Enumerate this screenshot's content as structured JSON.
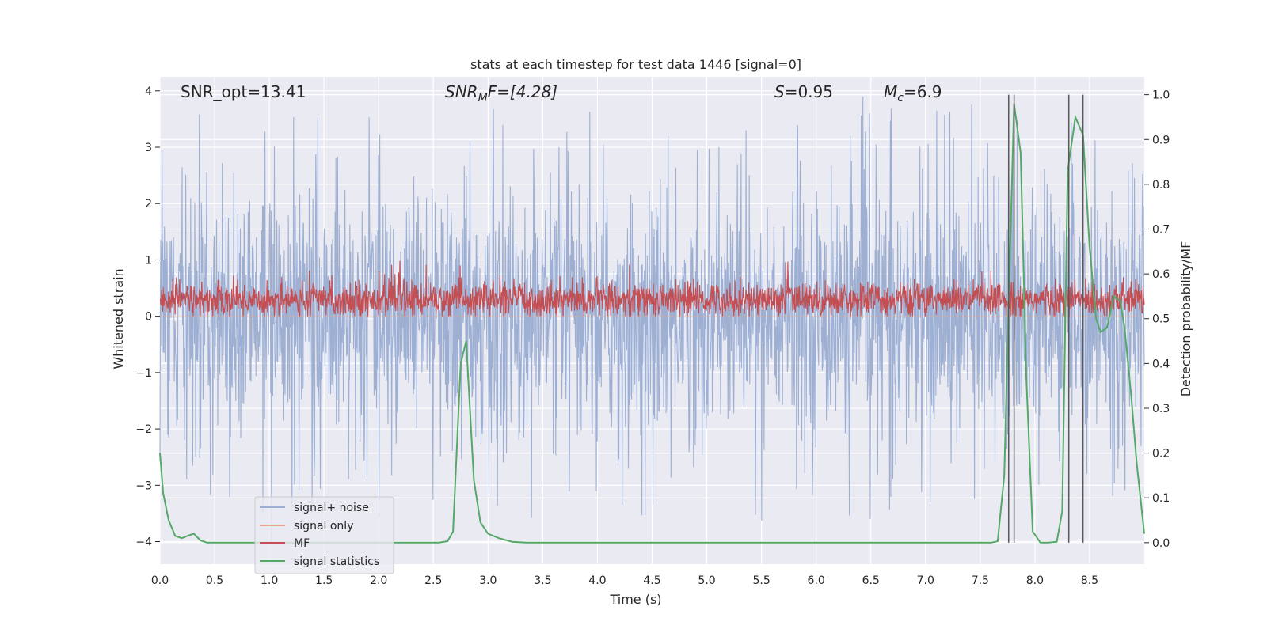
{
  "chart_data": {
    "type": "line",
    "title": "stats at each timestep for test data 1446 [signal=0]",
    "xlabel": "Time (s)",
    "ylabel": "Whitened strain",
    "y2label": "Detection probability/MF",
    "xlim": [
      0.0,
      9.0
    ],
    "ylim": [
      -4.4,
      4.25
    ],
    "y2lim": [
      -0.048,
      1.04
    ],
    "xticks": [
      0.0,
      0.5,
      1.0,
      1.5,
      2.0,
      2.5,
      3.0,
      3.5,
      4.0,
      4.5,
      5.0,
      5.5,
      6.0,
      6.5,
      7.0,
      7.5,
      8.0,
      8.5
    ],
    "xtick_labels": [
      "0.0",
      "0.5",
      "1.0",
      "1.5",
      "2.0",
      "2.5",
      "3.0",
      "3.5",
      "4.0",
      "4.5",
      "5.0",
      "5.5",
      "6.0",
      "6.5",
      "7.0",
      "7.5",
      "8.0",
      "8.5"
    ],
    "yticks": [
      -4,
      -3,
      -2,
      -1,
      0,
      1,
      2,
      3,
      4
    ],
    "ytick_labels": [
      "−4",
      "−3",
      "−2",
      "−1",
      "0",
      "1",
      "2",
      "3",
      "4"
    ],
    "y2ticks": [
      0.0,
      0.1,
      0.2,
      0.3,
      0.4,
      0.5,
      0.6,
      0.7,
      0.8,
      0.9,
      1.0
    ],
    "y2tick_labels": [
      "0.0",
      "0.1",
      "0.2",
      "0.3",
      "0.4",
      "0.5",
      "0.6",
      "0.7",
      "0.8",
      "0.9",
      "1.0"
    ],
    "annotations": [
      {
        "text": "SNR_opt=13.41",
        "x": 0.18,
        "y": 4.0
      },
      {
        "text": "SNR_MF=[4.28]",
        "x": 2.6,
        "y": 4.0
      },
      {
        "text": "S=0.95",
        "x": 5.6,
        "y": 4.0
      },
      {
        "text": "M_c=6.9",
        "x": 6.6,
        "y": 4.0
      }
    ],
    "annotation_labels": {
      "snr_opt": "SNR_opt=13.41",
      "snr_mf_prefix": "SNR",
      "snr_mf_sub": "M",
      "snr_mf_rest": "F=[4.28]",
      "s_var": "S",
      "s_rest": "=0.95",
      "mc_var": "M",
      "mc_sub": "c",
      "mc_rest": "=6.9"
    },
    "vertical_lines_x": [
      7.76,
      7.81,
      8.31,
      8.44
    ],
    "series": [
      {
        "name": "signal+ noise",
        "color": "#9db0d4",
        "axis": "left",
        "kind": "noise",
        "envelope_upper": 2.0,
        "envelope_lower": -2.0,
        "peak_max": 3.9,
        "peak_min": -4.0
      },
      {
        "name": "signal only",
        "color": "#e8a48c",
        "axis": "left",
        "kind": "flat",
        "value": 0.0
      },
      {
        "name": "MF",
        "color": "#c44e52",
        "axis": "left",
        "kind": "noise",
        "center": 0.3,
        "envelope_upper": 0.65,
        "envelope_lower": -0.05,
        "peak_max": 1.0,
        "peak_min": 0.0
      },
      {
        "name": "signal statistics",
        "color": "#55a868",
        "axis": "right",
        "kind": "line",
        "x": [
          0.0,
          0.03,
          0.08,
          0.14,
          0.2,
          0.25,
          0.31,
          0.37,
          0.43,
          0.5,
          0.6,
          2.4,
          2.55,
          2.63,
          2.68,
          2.75,
          2.8,
          2.87,
          2.93,
          3.0,
          3.1,
          3.22,
          3.35,
          7.6,
          7.66,
          7.72,
          7.76,
          7.81,
          7.87,
          7.92,
          7.98,
          8.05,
          8.12,
          8.2,
          8.25,
          8.3,
          8.37,
          8.44,
          8.5,
          8.56,
          8.6,
          8.66,
          8.72,
          8.78,
          8.82,
          8.88,
          8.93,
          9.0
        ],
        "values": [
          0.2,
          0.11,
          0.05,
          0.015,
          0.01,
          0.015,
          0.02,
          0.005,
          0.0,
          0.0,
          0.0,
          0.0,
          0.0,
          0.003,
          0.025,
          0.4,
          0.45,
          0.14,
          0.045,
          0.02,
          0.01,
          0.002,
          0.0,
          0.0,
          0.003,
          0.15,
          0.53,
          0.98,
          0.87,
          0.38,
          0.025,
          0.0,
          0.0,
          0.002,
          0.07,
          0.83,
          0.95,
          0.91,
          0.66,
          0.5,
          0.47,
          0.48,
          0.55,
          0.54,
          0.48,
          0.33,
          0.18,
          0.02
        ]
      }
    ],
    "legend": {
      "location": "lower-left",
      "entries": [
        "signal+ noise",
        "signal only",
        "MF",
        "signal statistics"
      ]
    }
  },
  "colors": {
    "plot_background": "#eaeaf2",
    "grid": "#ffffff",
    "vline": "#595959",
    "text": "#262626"
  }
}
